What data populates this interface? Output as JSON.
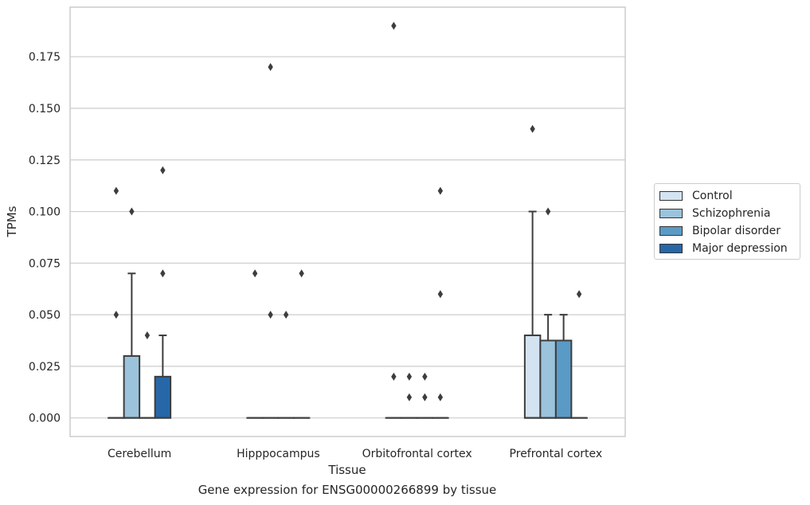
{
  "chart_data": {
    "type": "box",
    "ylabel": "TPMs",
    "xlabel": "Tissue",
    "caption": "Gene expression for ENSG00000266899 by tissue",
    "ylim": [
      -0.009,
      0.199
    ],
    "yticks": [
      "0.000",
      "0.025",
      "0.050",
      "0.075",
      "0.100",
      "0.125",
      "0.150",
      "0.175"
    ],
    "grid": "horizontal",
    "legend_position": "right",
    "categories": [
      "Cerebellum",
      "Hipppocampus",
      "Orbitofrontal cortex",
      "Prefrontal cortex"
    ],
    "series": [
      {
        "name": "Control",
        "color": "#d4e3f2",
        "boxes": [
          {
            "q1": 0,
            "median": 0,
            "q3": 0,
            "whisker_low": 0,
            "whisker_high": 0,
            "outliers": [
              0.05,
              0.11
            ]
          },
          {
            "q1": 0,
            "median": 0,
            "q3": 0,
            "whisker_low": 0,
            "whisker_high": 0,
            "outliers": [
              0.07
            ]
          },
          {
            "q1": 0,
            "median": 0,
            "q3": 0,
            "whisker_low": 0,
            "whisker_high": 0,
            "outliers": [
              0.02,
              0.19
            ]
          },
          {
            "q1": 0,
            "median": 0,
            "q3": 0.04,
            "whisker_low": 0,
            "whisker_high": 0.1,
            "outliers": [
              0.14
            ]
          }
        ]
      },
      {
        "name": "Schizophrenia",
        "color": "#9bc3dc",
        "boxes": [
          {
            "q1": 0,
            "median": 0,
            "q3": 0.03,
            "whisker_low": 0,
            "whisker_high": 0.07,
            "outliers": [
              0.1
            ]
          },
          {
            "q1": 0,
            "median": 0,
            "q3": 0,
            "whisker_low": 0,
            "whisker_high": 0,
            "outliers": [
              0.05,
              0.17
            ]
          },
          {
            "q1": 0,
            "median": 0,
            "q3": 0,
            "whisker_low": 0,
            "whisker_high": 0,
            "outliers": [
              0.01,
              0.02
            ]
          },
          {
            "q1": 0,
            "median": 0,
            "q3": 0.0375,
            "whisker_low": 0,
            "whisker_high": 0.05,
            "outliers": [
              0.1
            ]
          }
        ]
      },
      {
        "name": "Bipolar disorder",
        "color": "#5a9ac6",
        "boxes": [
          {
            "q1": 0,
            "median": 0,
            "q3": 0,
            "whisker_low": 0,
            "whisker_high": 0,
            "outliers": [
              0.04
            ]
          },
          {
            "q1": 0,
            "median": 0,
            "q3": 0,
            "whisker_low": 0,
            "whisker_high": 0,
            "outliers": [
              0.05
            ]
          },
          {
            "q1": 0,
            "median": 0,
            "q3": 0,
            "whisker_low": 0,
            "whisker_high": 0,
            "outliers": [
              0.01,
              0.02
            ]
          },
          {
            "q1": 0,
            "median": 0,
            "q3": 0.0375,
            "whisker_low": 0,
            "whisker_high": 0.05,
            "outliers": []
          }
        ]
      },
      {
        "name": "Major depression",
        "color": "#2767a8",
        "boxes": [
          {
            "q1": 0,
            "median": 0,
            "q3": 0.02,
            "whisker_low": 0,
            "whisker_high": 0.04,
            "outliers": [
              0.07,
              0.12
            ]
          },
          {
            "q1": 0,
            "median": 0,
            "q3": 0,
            "whisker_low": 0,
            "whisker_high": 0,
            "outliers": [
              0.07
            ]
          },
          {
            "q1": 0,
            "median": 0,
            "q3": 0,
            "whisker_low": 0,
            "whisker_high": 0,
            "outliers": [
              0.01,
              0.06,
              0.11
            ]
          },
          {
            "q1": 0,
            "median": 0,
            "q3": 0,
            "whisker_low": 0,
            "whisker_high": 0,
            "outliers": [
              0.06
            ]
          }
        ]
      }
    ]
  }
}
